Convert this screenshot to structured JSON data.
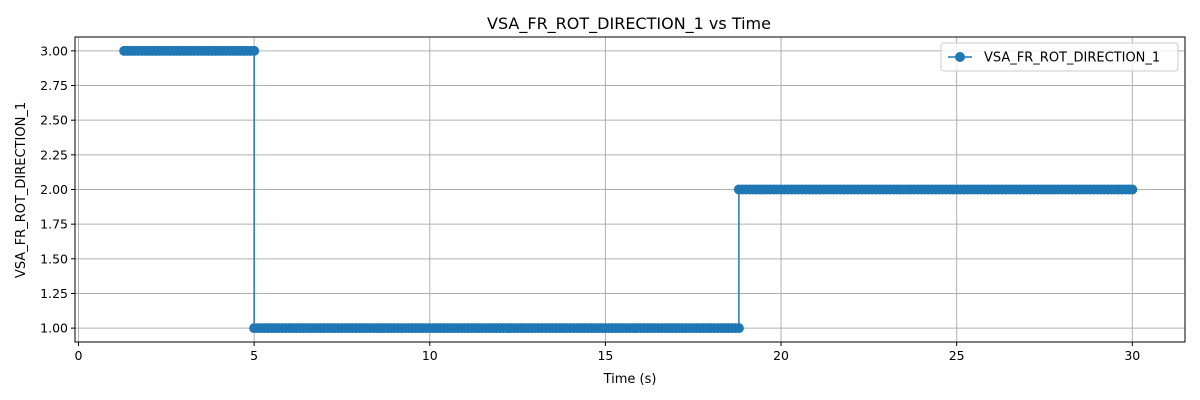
{
  "chart_data": {
    "type": "line",
    "title": "VSA_FR_ROT_DIRECTION_1 vs Time",
    "xlabel": "Time (s)",
    "ylabel": "VSA_FR_ROT_DIRECTION_1",
    "xlim": [
      -0.1,
      31.5
    ],
    "ylim": [
      0.9,
      3.1
    ],
    "xticks": [
      0,
      5,
      10,
      15,
      20,
      25,
      30
    ],
    "xtick_labels": [
      "0",
      "5",
      "10",
      "15",
      "20",
      "25",
      "30"
    ],
    "yticks": [
      1.0,
      1.25,
      1.5,
      1.75,
      2.0,
      2.25,
      2.5,
      2.75,
      3.0
    ],
    "ytick_labels": [
      "1.00",
      "1.25",
      "1.50",
      "1.75",
      "2.00",
      "2.25",
      "2.50",
      "2.75",
      "3.00"
    ],
    "grid": true,
    "legend_position": "top-right",
    "series": [
      {
        "name": "VSA_FR_ROT_DIRECTION_1",
        "color": "#1f77b4",
        "marker": "circle",
        "segments": [
          {
            "x_start": 1.3,
            "x_end": 5.0,
            "y": 3.0
          },
          {
            "x_start": 5.0,
            "x_end": 18.8,
            "y": 1.0
          },
          {
            "x_start": 18.8,
            "x_end": 30.0,
            "y": 2.0
          }
        ],
        "sample_interval": 0.1
      }
    ]
  }
}
